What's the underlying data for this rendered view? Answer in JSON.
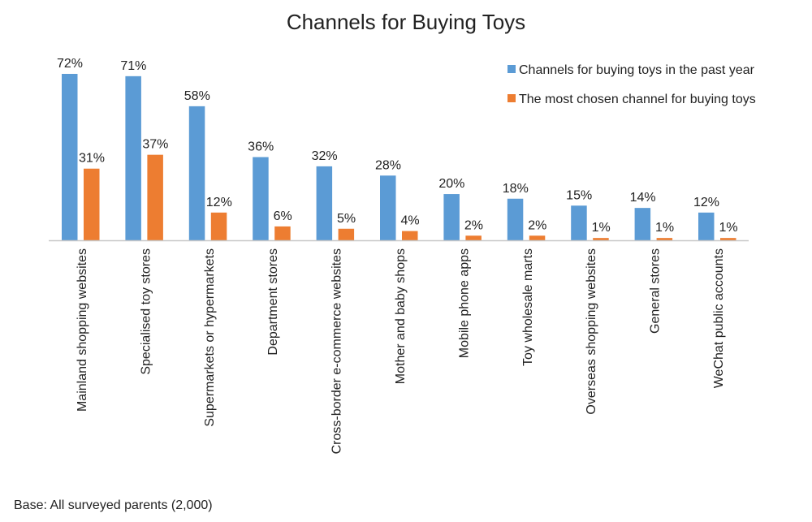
{
  "chart_data": {
    "type": "bar",
    "title": "Channels for Buying Toys",
    "xlabel": "",
    "ylabel": "",
    "ylim": [
      0,
      72
    ],
    "grid": false,
    "legend_position": "top-right",
    "value_suffix": "%",
    "categories": [
      "Mainland shopping websites",
      "Specialised toy stores",
      "Supermarkets or hypermarkets",
      "Department stores",
      "Cross-border e-commerce websites",
      "Mother and baby shops",
      "Mobile phone apps",
      "Toy wholesale marts",
      "Overseas shopping websites",
      "General stores",
      "WeChat public accounts"
    ],
    "series": [
      {
        "name": "Channels for buying toys in the past year",
        "color": "#5B9BD5",
        "values": [
          72,
          71,
          58,
          36,
          32,
          28,
          20,
          18,
          15,
          14,
          12
        ]
      },
      {
        "name": "The most chosen channel for buying toys",
        "color": "#ED7D31",
        "values": [
          31,
          37,
          12,
          6,
          5,
          4,
          2,
          2,
          1,
          1,
          1
        ]
      }
    ],
    "footnote": "Base: All surveyed parents (2,000)"
  }
}
